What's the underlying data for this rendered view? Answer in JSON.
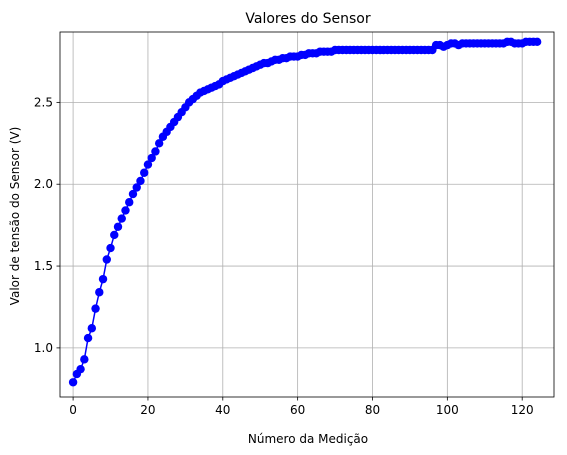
{
  "chart_data": {
    "type": "line",
    "title": "Valores do Sensor",
    "xlabel": "Número da Medição",
    "ylabel": "Valor de tensão do Sensor (V)",
    "xlim": [
      -3.5,
      128.5
    ],
    "ylim": [
      0.7,
      2.93
    ],
    "xticks": [
      0,
      20,
      40,
      60,
      80,
      100,
      120
    ],
    "yticks": [
      1.0,
      1.5,
      2.0,
      2.5
    ],
    "ytick_labels": [
      "1.0",
      "1.5",
      "2.0",
      "2.5"
    ],
    "grid": true,
    "marker": "o",
    "color": "#0000ff",
    "series": [
      {
        "x": [
          0,
          1,
          2,
          3,
          4,
          5,
          6,
          7,
          8,
          9,
          10,
          11,
          12,
          13,
          14,
          15,
          16,
          17,
          18,
          19,
          20,
          21,
          22,
          23,
          24,
          25,
          26,
          27,
          28,
          29,
          30,
          31,
          32,
          33,
          34,
          35,
          36,
          37,
          38,
          39,
          40,
          41,
          42,
          43,
          44,
          45,
          46,
          47,
          48,
          49,
          50,
          51,
          52,
          53,
          54,
          55,
          56,
          57,
          58,
          59,
          60,
          61,
          62,
          63,
          64,
          65,
          66,
          67,
          68,
          69,
          70,
          71,
          72,
          73,
          74,
          75,
          76,
          77,
          78,
          79,
          80,
          81,
          82,
          83,
          84,
          85,
          86,
          87,
          88,
          89,
          90,
          91,
          92,
          93,
          94,
          95,
          96,
          97,
          98,
          99,
          100,
          101,
          102,
          103,
          104,
          105,
          106,
          107,
          108,
          109,
          110,
          111,
          112,
          113,
          114,
          115,
          116,
          117,
          118,
          119,
          120,
          121,
          122,
          123,
          124
        ],
        "values": [
          0.79,
          0.84,
          0.87,
          0.93,
          1.06,
          1.12,
          1.24,
          1.34,
          1.42,
          1.54,
          1.61,
          1.69,
          1.74,
          1.79,
          1.84,
          1.89,
          1.94,
          1.98,
          2.02,
          2.07,
          2.12,
          2.16,
          2.2,
          2.25,
          2.29,
          2.32,
          2.35,
          2.38,
          2.41,
          2.44,
          2.47,
          2.5,
          2.52,
          2.54,
          2.56,
          2.57,
          2.58,
          2.59,
          2.6,
          2.61,
          2.63,
          2.64,
          2.65,
          2.66,
          2.67,
          2.68,
          2.69,
          2.7,
          2.71,
          2.72,
          2.73,
          2.74,
          2.74,
          2.75,
          2.76,
          2.76,
          2.77,
          2.77,
          2.78,
          2.78,
          2.78,
          2.79,
          2.79,
          2.8,
          2.8,
          2.8,
          2.81,
          2.81,
          2.81,
          2.81,
          2.82,
          2.82,
          2.82,
          2.82,
          2.82,
          2.82,
          2.82,
          2.82,
          2.82,
          2.82,
          2.82,
          2.82,
          2.82,
          2.82,
          2.82,
          2.82,
          2.82,
          2.82,
          2.82,
          2.82,
          2.82,
          2.82,
          2.82,
          2.82,
          2.82,
          2.82,
          2.82,
          2.85,
          2.85,
          2.84,
          2.85,
          2.86,
          2.86,
          2.85,
          2.86,
          2.86,
          2.86,
          2.86,
          2.86,
          2.86,
          2.86,
          2.86,
          2.86,
          2.86,
          2.86,
          2.86,
          2.87,
          2.87,
          2.86,
          2.86,
          2.86,
          2.87,
          2.87,
          2.87,
          2.87
        ]
      }
    ]
  }
}
